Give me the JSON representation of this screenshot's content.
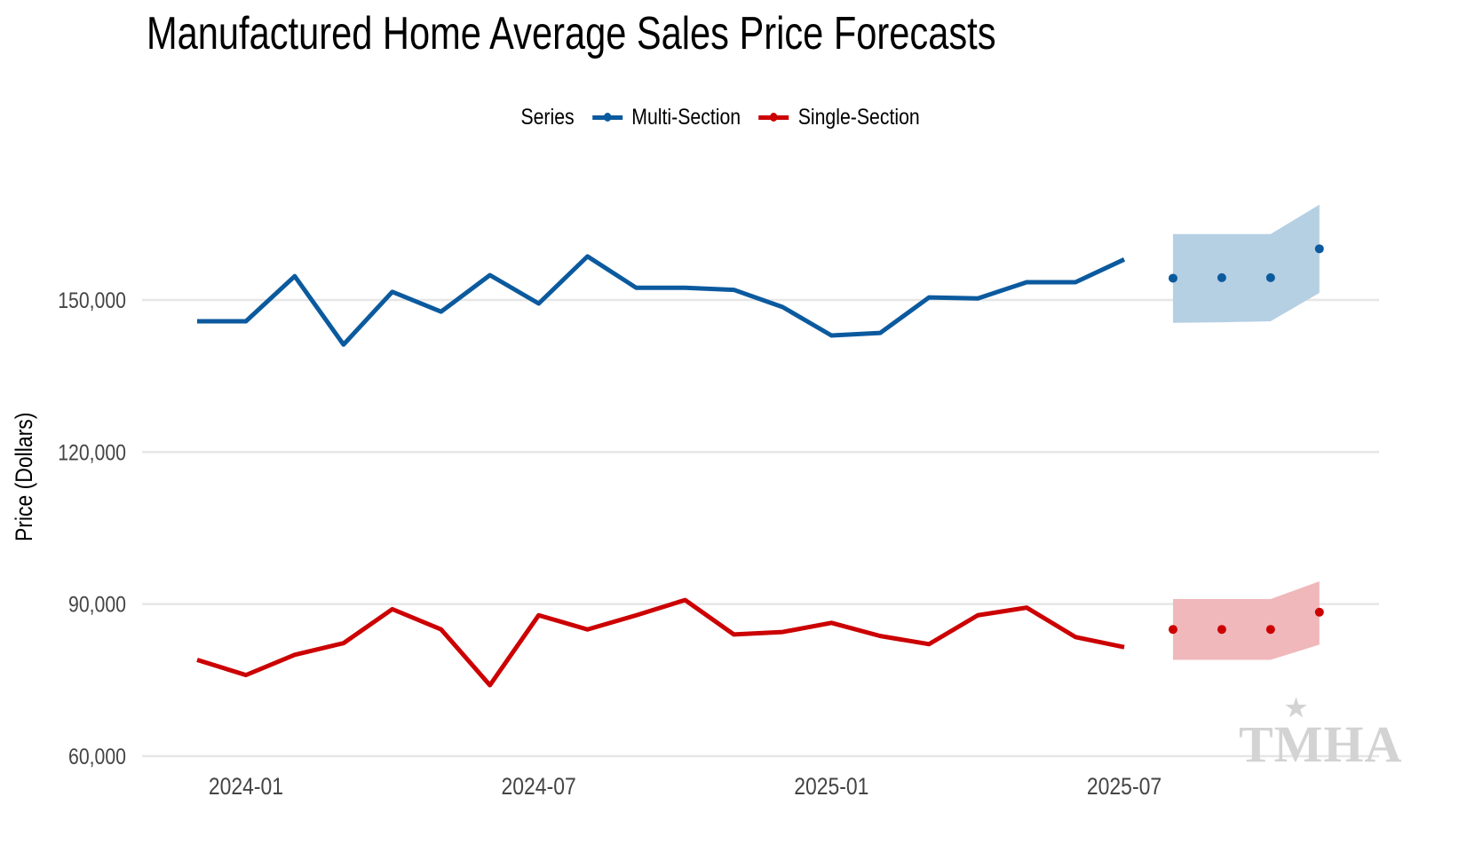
{
  "chart_data": {
    "type": "line",
    "title": "Manufactured Home Average Sales Price Forecasts",
    "xlabel": "",
    "ylabel": "Price (Dollars)",
    "ylim": [
      59000,
      170000
    ],
    "yticks": [
      60000,
      90000,
      120000,
      150000
    ],
    "ytick_labels": [
      "60,000",
      "90,000",
      "120,000",
      "150,000"
    ],
    "xticks": [
      "2024-01",
      "2024-07",
      "2025-01",
      "2025-07"
    ],
    "grid": "horizontal major lines",
    "legend": {
      "title": "Series",
      "placement": "top",
      "entries": [
        "Multi-Section",
        "Single-Section"
      ]
    },
    "colors": {
      "multi": "#0b5a9e",
      "single": "#cc0000",
      "multi_band": "#b5cfe3",
      "single_band": "#f0b8bb",
      "grid": "#e6e6e6"
    },
    "x": [
      "2023-12",
      "2024-01",
      "2024-02",
      "2024-03",
      "2024-04",
      "2024-05",
      "2024-06",
      "2024-07",
      "2024-08",
      "2024-09",
      "2024-10",
      "2024-11",
      "2024-12",
      "2025-01",
      "2025-02",
      "2025-03",
      "2025-04",
      "2025-05",
      "2025-06",
      "2025-07"
    ],
    "series": [
      {
        "name": "Multi-Section",
        "values": [
          145800,
          145800,
          154700,
          141200,
          151600,
          147700,
          154900,
          149300,
          158600,
          152400,
          152400,
          152000,
          148600,
          143000,
          143500,
          150500,
          150300,
          153500,
          153500,
          158000
        ]
      },
      {
        "name": "Single-Section",
        "values": [
          79000,
          76000,
          80000,
          82300,
          89000,
          85000,
          74000,
          87800,
          85000,
          87800,
          90800,
          84000,
          84500,
          86300,
          83700,
          82100,
          87800,
          89300,
          83500,
          81500
        ]
      }
    ],
    "forecast": {
      "x": [
        "2025-08",
        "2025-09",
        "2025-10",
        "2025-11"
      ],
      "series": [
        {
          "name": "Multi-Section",
          "values": [
            154300,
            154400,
            154400,
            160100
          ],
          "lower": [
            145500,
            145600,
            145800,
            151400
          ],
          "upper": [
            163000,
            163000,
            163000,
            168800
          ]
        },
        {
          "name": "Single-Section",
          "values": [
            85000,
            85000,
            85000,
            88400
          ],
          "lower": [
            79000,
            79000,
            79000,
            82000
          ],
          "upper": [
            91000,
            91000,
            91000,
            94500
          ]
        }
      ]
    }
  },
  "watermark": {
    "text": "TMHA"
  }
}
